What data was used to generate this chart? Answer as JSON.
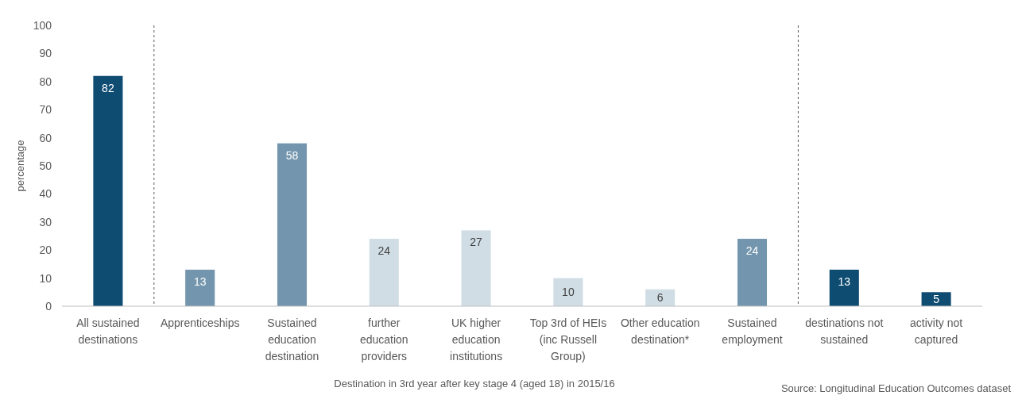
{
  "chart_data": {
    "type": "bar",
    "xlabel": "Destination in 3rd year after key stage 4 (aged 18) in 2015/16",
    "ylabel": "percentage",
    "categories": [
      "All sustained destinations",
      "Apprenticeships",
      "Sustained education destination",
      "further education providers",
      "UK higher education institutions",
      "Top 3rd of HEIs (inc Russell Group)",
      "Other education destination*",
      "Sustained employment",
      "destinations not sustained",
      "activity not captured"
    ],
    "values": [
      82,
      13,
      58,
      24,
      27,
      10,
      6,
      24,
      13,
      5
    ],
    "colors": [
      "#0f4c72",
      "#7396ae",
      "#7396ae",
      "#d0dde5",
      "#d0dde5",
      "#d0dde5",
      "#d0dde5",
      "#7396ae",
      "#0f4c72",
      "#0f4c72"
    ],
    "ylim": [
      0,
      100
    ],
    "yticks": [
      0,
      10,
      20,
      30,
      40,
      50,
      60,
      70,
      80,
      90,
      100
    ],
    "grid": false,
    "data_labels": true,
    "annotations": [
      "Source: Longitudinal Education Outcomes dataset"
    ]
  }
}
